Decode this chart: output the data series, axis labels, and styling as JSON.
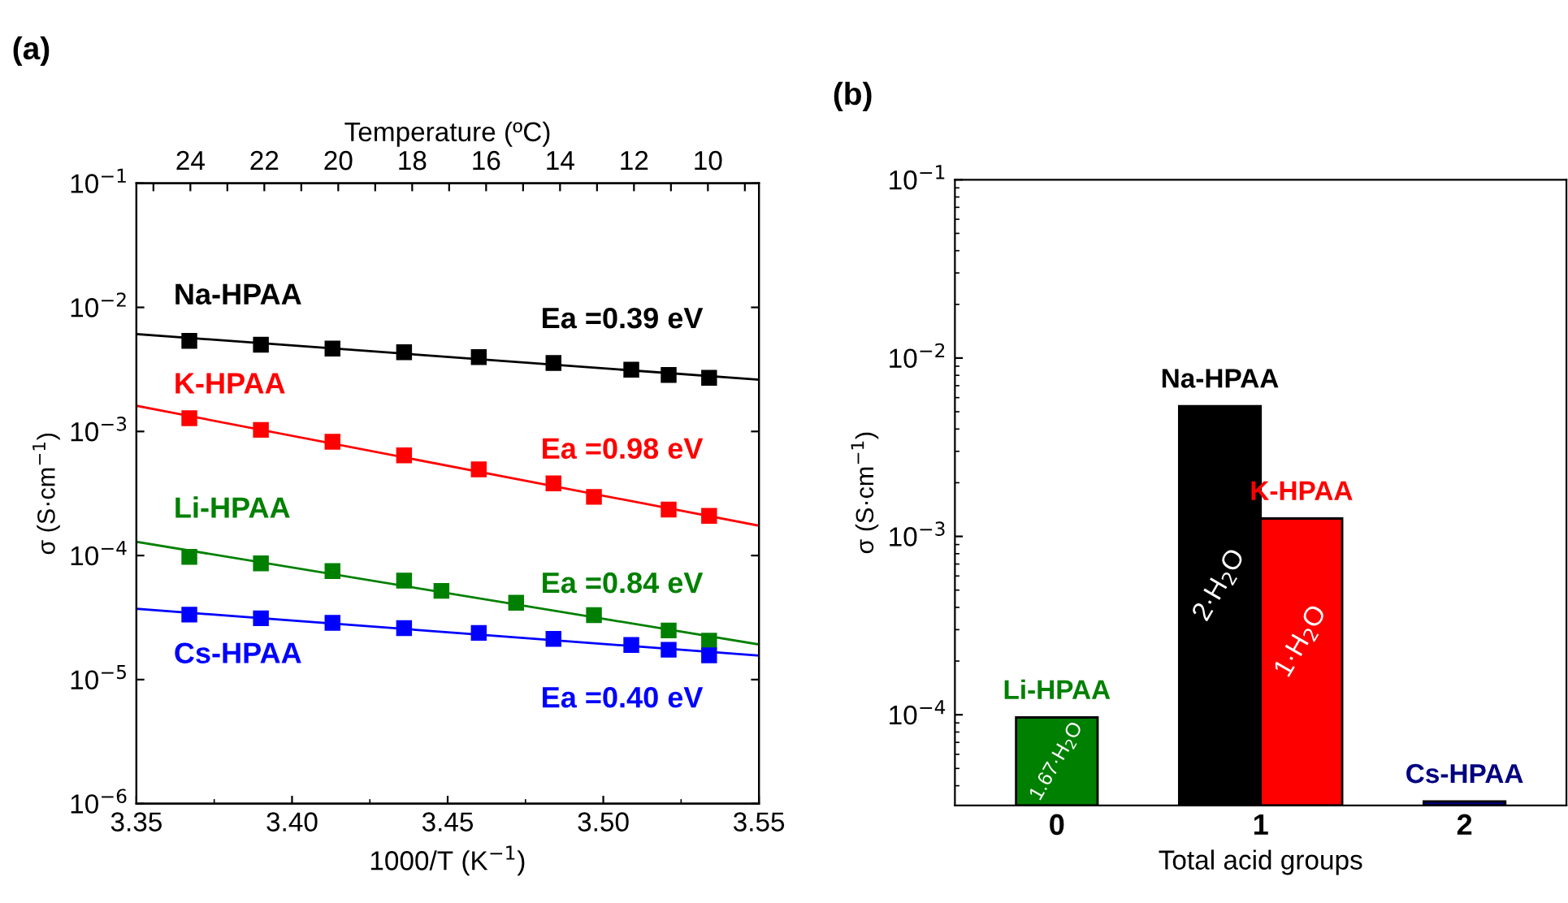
{
  "chart_data": [
    {
      "type": "scatter",
      "title": "(a)",
      "xlabel": "1000/T (K$^{−1}$)",
      "ylabel": "σ (S·cm$^{−1}$)",
      "x2label": "Temperature (ºC)",
      "log": "y",
      "marker": "square",
      "legend": false,
      "grid": false,
      "xlim": [
        3.35,
        3.55
      ],
      "xticks": [
        {
          "value": 3.35,
          "label": "3.35"
        },
        {
          "value": 3.4,
          "label": "3.40"
        },
        {
          "value": 3.45,
          "label": "3.45"
        },
        {
          "value": 3.5,
          "label": "3.50"
        },
        {
          "value": 3.55,
          "label": "3.55"
        }
      ],
      "x2lim": [
        25.46,
        8.62
      ],
      "x2ticks": [
        {
          "value": 25,
          "label": null
        },
        24,
        {
          "value": 23,
          "label": null
        },
        22,
        {
          "value": 21,
          "label": null
        },
        20,
        {
          "value": 19,
          "label": null
        },
        18,
        {
          "value": 17,
          "label": null
        },
        16,
        {
          "value": 15,
          "label": null
        },
        14,
        {
          "value": 13,
          "label": null
        },
        12,
        {
          "value": 11,
          "label": null
        },
        10,
        {
          "value": 9,
          "label": null
        }
      ],
      "ylim": [
        1e-06,
        0.1
      ],
      "yticks": [
        {
          "value": 1e-06,
          "label": "10$^{−6}$"
        },
        {
          "value": 1e-05,
          "label": "10$^{−5}$"
        },
        {
          "value": 0.0001,
          "label": "10$^{−4}$"
        },
        {
          "value": 0.001,
          "label": "10$^{−3}$"
        },
        {
          "value": 0.01,
          "label": "10$^{−2}$"
        },
        {
          "value": 0.1,
          "label": "10$^{−1}$"
        }
      ],
      "series": [
        {
          "name": "Na-HPAA",
          "color": "#000000",
          "x": [
            3.367,
            3.39,
            3.413,
            3.436,
            3.46,
            3.484,
            3.509,
            3.521,
            3.534
          ],
          "values": [
            0.00537,
            0.005,
            0.00466,
            0.00435,
            0.00398,
            0.00356,
            0.00315,
            0.00285,
            0.00271
          ]
        },
        {
          "name": "K-HPAA",
          "color": "#ff0000",
          "x": [
            3.367,
            3.39,
            3.413,
            3.436,
            3.46,
            3.484,
            3.497,
            3.521,
            3.534
          ],
          "values": [
            0.00128,
            0.00103,
            0.000825,
            0.000641,
            0.000495,
            0.000381,
            0.000297,
            0.000235,
            0.000209
          ]
        },
        {
          "name": "Li-HPAA",
          "color": "#008000",
          "x": [
            3.367,
            3.39,
            3.413,
            3.436,
            3.448,
            3.472,
            3.497,
            3.521,
            3.534
          ],
          "values": [
            9.75e-05,
            8.65e-05,
            7.5e-05,
            6.28e-05,
            5.19e-05,
            4.16e-05,
            3.31e-05,
            2.49e-05,
            2.06e-05
          ]
        },
        {
          "name": "Cs-HPAA",
          "color": "#0000ff",
          "x": [
            3.367,
            3.39,
            3.413,
            3.436,
            3.46,
            3.484,
            3.509,
            3.521,
            3.534
          ],
          "values": [
            3.34e-05,
            3.12e-05,
            2.87e-05,
            2.6e-05,
            2.38e-05,
            2.13e-05,
            1.9e-05,
            1.74e-05,
            1.57e-05
          ]
        },
        {
          "type": "line",
          "marker": "none",
          "color": "#000000",
          "x": [
            3.35,
            3.55
          ],
          "values": [
            0.0061,
            0.00261
          ]
        },
        {
          "type": "line",
          "marker": "none",
          "color": "#ff0000",
          "x": [
            3.35,
            3.55
          ],
          "values": [
            0.00161,
            0.000174
          ]
        },
        {
          "type": "line",
          "marker": "none",
          "color": "#008000",
          "x": [
            3.35,
            3.55
          ],
          "values": [
            0.000129,
            1.92e-05
          ]
        },
        {
          "type": "line",
          "marker": "none",
          "color": "#0000ff",
          "x": [
            3.35,
            3.55
          ],
          "values": [
            3.72e-05,
            1.56e-05
          ]
        }
      ],
      "annotations": [
        "Ea =0.39 eV",
        "Ea =0.98 eV",
        "Ea =0.84 eV",
        "Ea =0.40 eV"
      ]
    },
    {
      "type": "bar",
      "title": "(b)",
      "xlabel": "Total acid groups",
      "ylabel": "σ (S·cm$^{−1}$)",
      "log": "y",
      "legend": false,
      "grid": false,
      "categories": [
        "0",
        "1",
        "2"
      ],
      "ylim": [
        3.1e-05,
        0.1
      ],
      "yticks": [
        {
          "value": 0.0001,
          "label": "10$^{−4}$"
        },
        {
          "value": 0.001,
          "label": "10$^{−3}$"
        },
        {
          "value": 0.01,
          "label": "10$^{−2}$"
        },
        {
          "value": 0.1,
          "label": "10$^{−1}$"
        }
      ],
      "series": [
        {
          "name": "Li-HPAA",
          "color": "#008000",
          "values": [
            9.66e-05,
            null,
            null
          ]
        },
        {
          "name": "Na-HPAA",
          "color": "#000000",
          "values": [
            null,
            0.00538,
            null
          ]
        },
        {
          "name": "K-HPAA",
          "color": "#ff0000",
          "values": [
            null,
            0.00126,
            null
          ]
        },
        {
          "name": "Cs-HPAA",
          "color": "#000080",
          "values": [
            null,
            null,
            3.27e-05
          ]
        }
      ],
      "annotations": [
        "1.67·H$_{2}$O",
        "2·H$_{2}$O",
        "1·H$_{2}$O"
      ]
    }
  ]
}
